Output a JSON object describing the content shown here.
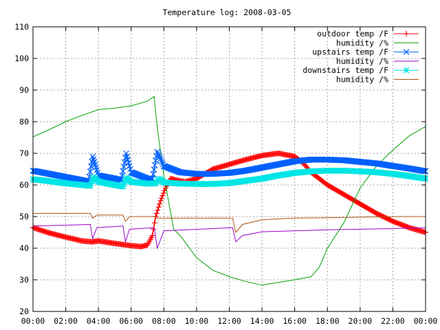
{
  "chart_data": {
    "type": "line",
    "title": "Temperature log: 2008-03-05",
    "xlabel": "",
    "ylabel": "",
    "x_unit": "hours since 00:00",
    "xlim": [
      0,
      24
    ],
    "ylim": [
      20,
      110
    ],
    "xticks": [
      "00:00",
      "02:00",
      "04:00",
      "06:00",
      "08:00",
      "10:00",
      "12:00",
      "14:00",
      "16:00",
      "18:00",
      "20:00",
      "22:00",
      "00:00"
    ],
    "yticks": [
      "20",
      "30",
      "40",
      "50",
      "60",
      "70",
      "80",
      "90",
      "100",
      "110"
    ],
    "grid": true,
    "legend_position": "top-right",
    "series": [
      {
        "name": "outdoor temp /F",
        "color": "#ff0000",
        "marker": "plus",
        "points": [
          [
            0,
            46.5
          ],
          [
            1,
            44.8
          ],
          [
            2,
            43.5
          ],
          [
            3,
            42.3
          ],
          [
            3.6,
            42
          ],
          [
            4,
            42.3
          ],
          [
            5,
            41.5
          ],
          [
            6,
            40.8
          ],
          [
            6.6,
            40.5
          ],
          [
            7,
            41
          ],
          [
            7.3,
            44
          ],
          [
            7.5,
            50
          ],
          [
            7.8,
            55
          ],
          [
            8.1,
            59
          ],
          [
            8.4,
            62
          ],
          [
            8.8,
            61.5
          ],
          [
            9.3,
            61
          ],
          [
            10,
            62
          ],
          [
            11,
            65
          ],
          [
            12,
            66.5
          ],
          [
            13,
            68
          ],
          [
            14,
            69.3
          ],
          [
            15,
            70
          ],
          [
            16,
            69
          ],
          [
            16.5,
            67
          ],
          [
            17,
            64
          ],
          [
            18,
            60
          ],
          [
            19,
            57
          ],
          [
            20,
            54
          ],
          [
            21,
            51
          ],
          [
            22,
            48.5
          ],
          [
            23,
            46.5
          ],
          [
            24,
            45
          ]
        ]
      },
      {
        "name": "humidity /%",
        "color": "#00a000",
        "marker": "none",
        "points": [
          [
            0,
            75.2
          ],
          [
            1,
            77.5
          ],
          [
            2,
            80
          ],
          [
            3,
            82
          ],
          [
            4,
            83.8
          ],
          [
            5,
            84.3
          ],
          [
            6,
            85
          ],
          [
            7,
            86.5
          ],
          [
            7.4,
            88
          ],
          [
            7.6,
            78
          ],
          [
            8,
            63
          ],
          [
            8.6,
            46
          ],
          [
            9,
            44
          ],
          [
            10,
            37
          ],
          [
            11,
            33
          ],
          [
            12,
            31
          ],
          [
            13,
            29.5
          ],
          [
            14,
            28.3
          ],
          [
            15,
            29.2
          ],
          [
            16,
            30
          ],
          [
            17,
            31
          ],
          [
            17.5,
            34
          ],
          [
            18,
            40
          ],
          [
            19,
            48
          ],
          [
            20,
            59
          ],
          [
            21,
            66
          ],
          [
            22,
            71
          ],
          [
            23,
            75.5
          ],
          [
            24,
            78.5
          ]
        ]
      },
      {
        "name": "upstairs temp /F",
        "color": "#0060ff",
        "marker": "x",
        "points": [
          [
            0,
            64.5
          ],
          [
            1,
            63.5
          ],
          [
            2,
            62.5
          ],
          [
            3,
            61.5
          ],
          [
            3.4,
            61
          ],
          [
            3.65,
            69
          ],
          [
            4,
            63
          ],
          [
            5,
            62
          ],
          [
            5.4,
            61.5
          ],
          [
            5.7,
            70
          ],
          [
            6,
            64
          ],
          [
            7,
            62
          ],
          [
            7.3,
            62
          ],
          [
            7.6,
            70.5
          ],
          [
            8,
            66
          ],
          [
            9,
            64
          ],
          [
            10,
            63.5
          ],
          [
            11,
            63.5
          ],
          [
            12,
            63.8
          ],
          [
            13,
            64.5
          ],
          [
            14,
            65.5
          ],
          [
            15,
            66.5
          ],
          [
            16,
            67.5
          ],
          [
            17,
            68
          ],
          [
            18,
            68
          ],
          [
            19,
            67.8
          ],
          [
            20,
            67.3
          ],
          [
            21,
            66.8
          ],
          [
            22,
            66
          ],
          [
            23,
            65.2
          ],
          [
            24,
            64.3
          ]
        ]
      },
      {
        "name": "humidity /%",
        "color": "#9900cc",
        "marker": "none",
        "points": [
          [
            0,
            47
          ],
          [
            3.5,
            47.5
          ],
          [
            3.65,
            43
          ],
          [
            3.9,
            46.5
          ],
          [
            5.5,
            47
          ],
          [
            5.65,
            42
          ],
          [
            5.9,
            46
          ],
          [
            7.4,
            46.5
          ],
          [
            7.6,
            40
          ],
          [
            8,
            45.5
          ],
          [
            12.2,
            46.5
          ],
          [
            12.4,
            42
          ],
          [
            12.8,
            44
          ],
          [
            14,
            45.2
          ],
          [
            16,
            45.5
          ],
          [
            18,
            45.8
          ],
          [
            20,
            46
          ],
          [
            22,
            46.2
          ],
          [
            24,
            46.5
          ]
        ]
      },
      {
        "name": "downstairs temp /F",
        "color": "#00e5e5",
        "marker": "star",
        "points": [
          [
            0,
            61.8
          ],
          [
            1,
            61.2
          ],
          [
            2,
            60.5
          ],
          [
            3,
            60
          ],
          [
            3.5,
            59.7
          ],
          [
            3.7,
            62.5
          ],
          [
            4,
            61
          ],
          [
            5,
            60
          ],
          [
            5.5,
            59.5
          ],
          [
            5.7,
            62.3
          ],
          [
            6,
            61
          ],
          [
            7,
            60.4
          ],
          [
            7.5,
            60.5
          ],
          [
            7.7,
            62
          ],
          [
            8,
            60.8
          ],
          [
            9,
            60.4
          ],
          [
            10,
            60.3
          ],
          [
            11,
            60.3
          ],
          [
            12,
            60.6
          ],
          [
            13,
            61.3
          ],
          [
            14,
            62
          ],
          [
            15,
            63
          ],
          [
            16,
            63.8
          ],
          [
            17,
            64.3
          ],
          [
            18,
            64.5
          ],
          [
            19,
            64.5
          ],
          [
            20,
            64.3
          ],
          [
            21,
            64
          ],
          [
            22,
            63.5
          ],
          [
            23,
            62.8
          ],
          [
            24,
            62
          ]
        ]
      },
      {
        "name": "humidity /%",
        "color": "#b05010",
        "marker": "none",
        "points": [
          [
            0,
            51
          ],
          [
            3.5,
            51
          ],
          [
            3.65,
            49.5
          ],
          [
            3.9,
            50.5
          ],
          [
            5.5,
            50.5
          ],
          [
            5.65,
            48.5
          ],
          [
            5.9,
            50
          ],
          [
            7.4,
            50
          ],
          [
            7.6,
            49.5
          ],
          [
            8,
            49.5
          ],
          [
            12.2,
            49.5
          ],
          [
            12.4,
            45
          ],
          [
            12.8,
            47.5
          ],
          [
            14,
            49
          ],
          [
            16,
            49.5
          ],
          [
            18,
            49.6
          ],
          [
            20,
            49.8
          ],
          [
            22,
            50
          ],
          [
            24,
            50
          ]
        ]
      }
    ]
  }
}
